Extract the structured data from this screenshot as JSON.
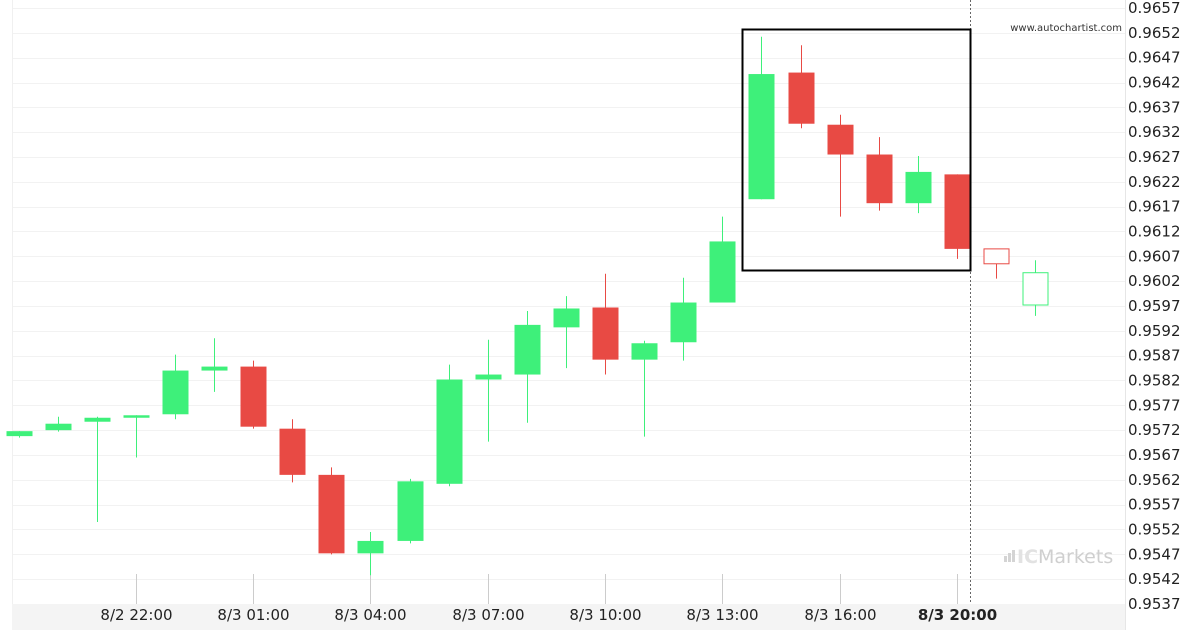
{
  "watermark": "www.autochartist.com",
  "brand": {
    "prefix": "IC",
    "suffix": "Markets",
    "bar_color": "#d4d4d4",
    "ic_color": "#e2e2e2",
    "text_color": "#cfcfcf"
  },
  "colors": {
    "bull": "#3ef07a",
    "bear": "#e84a44",
    "grid": "#f2f2f2",
    "axis_band": "#f4f4f4",
    "pattern_box": "#000000",
    "now_line": "#666666"
  },
  "chart_data": {
    "type": "candlestick",
    "title": "",
    "xlabel": "",
    "ylabel": "",
    "ylim": [
      0.9535,
      0.9658
    ],
    "y_ticks": [
      "0.9657",
      "0.9652",
      "0.9647",
      "0.9642",
      "0.9637",
      "0.9632",
      "0.9627",
      "0.9622",
      "0.9617",
      "0.9612",
      "0.9607",
      "0.9602",
      "0.9597",
      "0.9592",
      "0.9587",
      "0.9582",
      "0.9577",
      "0.9572",
      "0.9567",
      "0.9562",
      "0.9557",
      "0.9552",
      "0.9547",
      "0.9542",
      "0.9537"
    ],
    "x_ticks": [
      {
        "label": "8/2 22:00",
        "bar": 3,
        "bold": false
      },
      {
        "label": "8/3 01:00",
        "bar": 6,
        "bold": false
      },
      {
        "label": "8/3 04:00",
        "bar": 9,
        "bold": false
      },
      {
        "label": "8/3 07:00",
        "bar": 12,
        "bold": false
      },
      {
        "label": "8/3 10:00",
        "bar": 15,
        "bold": false
      },
      {
        "label": "8/3 13:00",
        "bar": 18,
        "bold": false
      },
      {
        "label": "8/3 16:00",
        "bar": 21,
        "bold": false
      },
      {
        "label": "8/3 20:00",
        "bar": 24,
        "bold": true
      }
    ],
    "candles": [
      {
        "o": 0.95708,
        "h": 0.95718,
        "l": 0.95705,
        "c": 0.95718
      },
      {
        "o": 0.9572,
        "h": 0.95747,
        "l": 0.95717,
        "c": 0.95733
      },
      {
        "o": 0.95737,
        "h": 0.95747,
        "l": 0.95535,
        "c": 0.95745
      },
      {
        "o": 0.95745,
        "h": 0.9575,
        "l": 0.95665,
        "c": 0.9575
      },
      {
        "o": 0.95752,
        "h": 0.95872,
        "l": 0.95742,
        "c": 0.9584
      },
      {
        "o": 0.9584,
        "h": 0.95905,
        "l": 0.95797,
        "c": 0.95848
      },
      {
        "o": 0.95848,
        "h": 0.9586,
        "l": 0.95723,
        "c": 0.95727
      },
      {
        "o": 0.95723,
        "h": 0.95742,
        "l": 0.95615,
        "c": 0.9563
      },
      {
        "o": 0.9563,
        "h": 0.95645,
        "l": 0.9547,
        "c": 0.95472
      },
      {
        "o": 0.95472,
        "h": 0.95515,
        "l": 0.95428,
        "c": 0.95497
      },
      {
        "o": 0.95497,
        "h": 0.95622,
        "l": 0.95492,
        "c": 0.95617
      },
      {
        "o": 0.95612,
        "h": 0.95852,
        "l": 0.95607,
        "c": 0.95822
      },
      {
        "o": 0.95822,
        "h": 0.95902,
        "l": 0.95697,
        "c": 0.95832
      },
      {
        "o": 0.95832,
        "h": 0.9596,
        "l": 0.95735,
        "c": 0.95932
      },
      {
        "o": 0.95927,
        "h": 0.9599,
        "l": 0.95845,
        "c": 0.95965
      },
      {
        "o": 0.95967,
        "h": 0.96035,
        "l": 0.95832,
        "c": 0.95862
      },
      {
        "o": 0.95862,
        "h": 0.959,
        "l": 0.95707,
        "c": 0.95895
      },
      {
        "o": 0.95897,
        "h": 0.96027,
        "l": 0.9586,
        "c": 0.95977
      },
      {
        "o": 0.95977,
        "h": 0.9615,
        "l": 0.95977,
        "c": 0.961
      },
      {
        "o": 0.96185,
        "h": 0.96512,
        "l": 0.96185,
        "c": 0.96437
      },
      {
        "o": 0.9644,
        "h": 0.96495,
        "l": 0.96328,
        "c": 0.96337
      },
      {
        "o": 0.96335,
        "h": 0.96355,
        "l": 0.9615,
        "c": 0.96275
      },
      {
        "o": 0.96275,
        "h": 0.9631,
        "l": 0.96162,
        "c": 0.96177
      },
      {
        "o": 0.96177,
        "h": 0.96272,
        "l": 0.96157,
        "c": 0.9624
      },
      {
        "o": 0.96235,
        "h": 0.96235,
        "l": 0.96065,
        "c": 0.96085
      },
      {
        "o": 0.96085,
        "h": 0.96085,
        "l": 0.96025,
        "c": 0.96055,
        "projected": true
      },
      {
        "o": 0.95972,
        "h": 0.96062,
        "l": 0.9595,
        "c": 0.96037,
        "projected": true
      }
    ],
    "pattern_box": {
      "from_bar": 19,
      "to_bar": 24,
      "top": 0.96528,
      "bottom": 0.96043
    },
    "now_bar": 24
  }
}
